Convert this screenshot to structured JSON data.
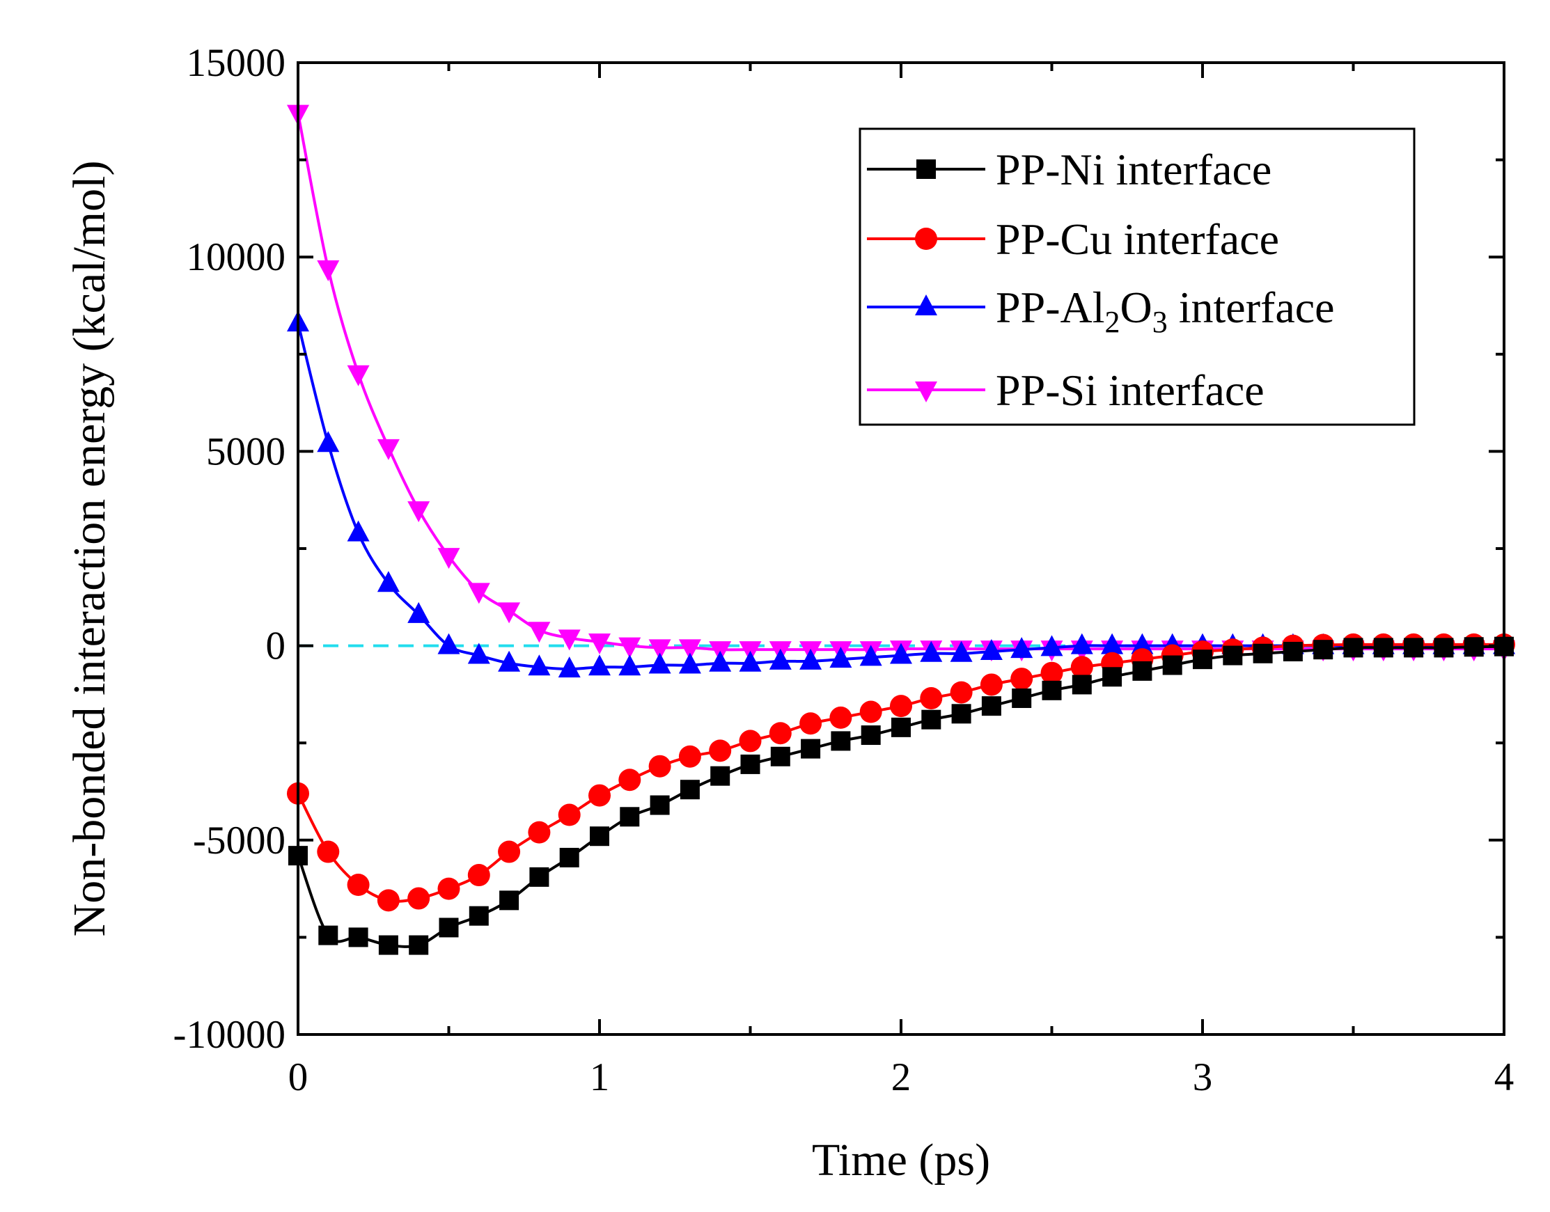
{
  "chart_data": {
    "type": "line",
    "title": "",
    "xlabel": "Time (ps)",
    "ylabel": "Non-bonded interaction energy (kcal/mol)",
    "xlim": [
      0,
      4
    ],
    "ylim": [
      -10000,
      15000
    ],
    "x_ticks": [
      0,
      1,
      2,
      3,
      4
    ],
    "x_tick_labels": [
      "0",
      "1",
      "2",
      "3",
      "4"
    ],
    "y_ticks": [
      -10000,
      -5000,
      0,
      5000,
      10000,
      15000
    ],
    "y_tick_labels": [
      "-10000",
      "-5000",
      "0",
      "5000",
      "10000",
      "15000"
    ],
    "grid": false,
    "legend_position": "top-right",
    "reference_line": {
      "y": 0,
      "color": "#22DDEE",
      "style": "dashed"
    },
    "x": [
      0,
      0.1,
      0.2,
      0.3,
      0.4,
      0.5,
      0.6,
      0.7,
      0.8,
      0.9,
      1.0,
      1.1,
      1.2,
      1.3,
      1.4,
      1.5,
      1.6,
      1.7,
      1.8,
      1.9,
      2.0,
      2.1,
      2.2,
      2.3,
      2.4,
      2.5,
      2.6,
      2.7,
      2.8,
      2.9,
      3.0,
      3.1,
      3.2,
      3.3,
      3.4,
      3.5,
      3.6,
      3.7,
      3.8,
      3.9,
      4.0
    ],
    "series": [
      {
        "name": "PP-Ni interface",
        "name_parts": [
          {
            "text": "PP-Ni interface"
          }
        ],
        "color": "#000000",
        "marker": "square",
        "values": [
          -5400,
          -7450,
          -7500,
          -7700,
          -7700,
          -7250,
          -6950,
          -6550,
          -5950,
          -5450,
          -4900,
          -4400,
          -4100,
          -3700,
          -3350,
          -3050,
          -2850,
          -2650,
          -2450,
          -2300,
          -2100,
          -1900,
          -1750,
          -1550,
          -1350,
          -1150,
          -1000,
          -800,
          -650,
          -500,
          -350,
          -250,
          -200,
          -150,
          -100,
          -50,
          -50,
          -50,
          -50,
          -30,
          -20
        ]
      },
      {
        "name": "PP-Cu interface",
        "name_parts": [
          {
            "text": "PP-Cu interface"
          }
        ],
        "color": "#FF0000",
        "marker": "circle",
        "values": [
          -3800,
          -5300,
          -6150,
          -6550,
          -6500,
          -6250,
          -5900,
          -5300,
          -4800,
          -4350,
          -3850,
          -3450,
          -3100,
          -2850,
          -2700,
          -2450,
          -2250,
          -2000,
          -1850,
          -1700,
          -1550,
          -1350,
          -1200,
          -1000,
          -850,
          -700,
          -550,
          -450,
          -350,
          -250,
          -150,
          -100,
          -50,
          0,
          20,
          30,
          30,
          30,
          30,
          30,
          30
        ]
      },
      {
        "name": "PP-Al2O3 interface",
        "name_parts": [
          {
            "text": "PP-Al"
          },
          {
            "text": "2",
            "sub": true
          },
          {
            "text": "O"
          },
          {
            "text": "3",
            "sub": true
          },
          {
            "text": " interface"
          }
        ],
        "color": "#0000FF",
        "marker": "triangle-up",
        "values": [
          8300,
          5200,
          2900,
          1600,
          800,
          0,
          -250,
          -450,
          -550,
          -600,
          -550,
          -550,
          -500,
          -500,
          -450,
          -450,
          -400,
          -400,
          -350,
          -300,
          -250,
          -200,
          -200,
          -150,
          -100,
          -50,
          0,
          0,
          0,
          0,
          0,
          0,
          0,
          0,
          0,
          0,
          0,
          0,
          0,
          0,
          0
        ]
      },
      {
        "name": "PP-Si interface",
        "name_parts": [
          {
            "text": "PP-Si interface"
          }
        ],
        "color": "#FF00FF",
        "marker": "triangle-down",
        "values": [
          13700,
          9700,
          7000,
          5100,
          3500,
          2300,
          1400,
          900,
          400,
          200,
          100,
          0,
          -50,
          -50,
          -100,
          -100,
          -100,
          -100,
          -100,
          -100,
          -80,
          -80,
          -80,
          -80,
          -80,
          -80,
          -80,
          -80,
          -80,
          -80,
          -80,
          -80,
          -80,
          -80,
          -80,
          -80,
          -80,
          -80,
          -80,
          -80,
          -80
        ]
      }
    ]
  }
}
